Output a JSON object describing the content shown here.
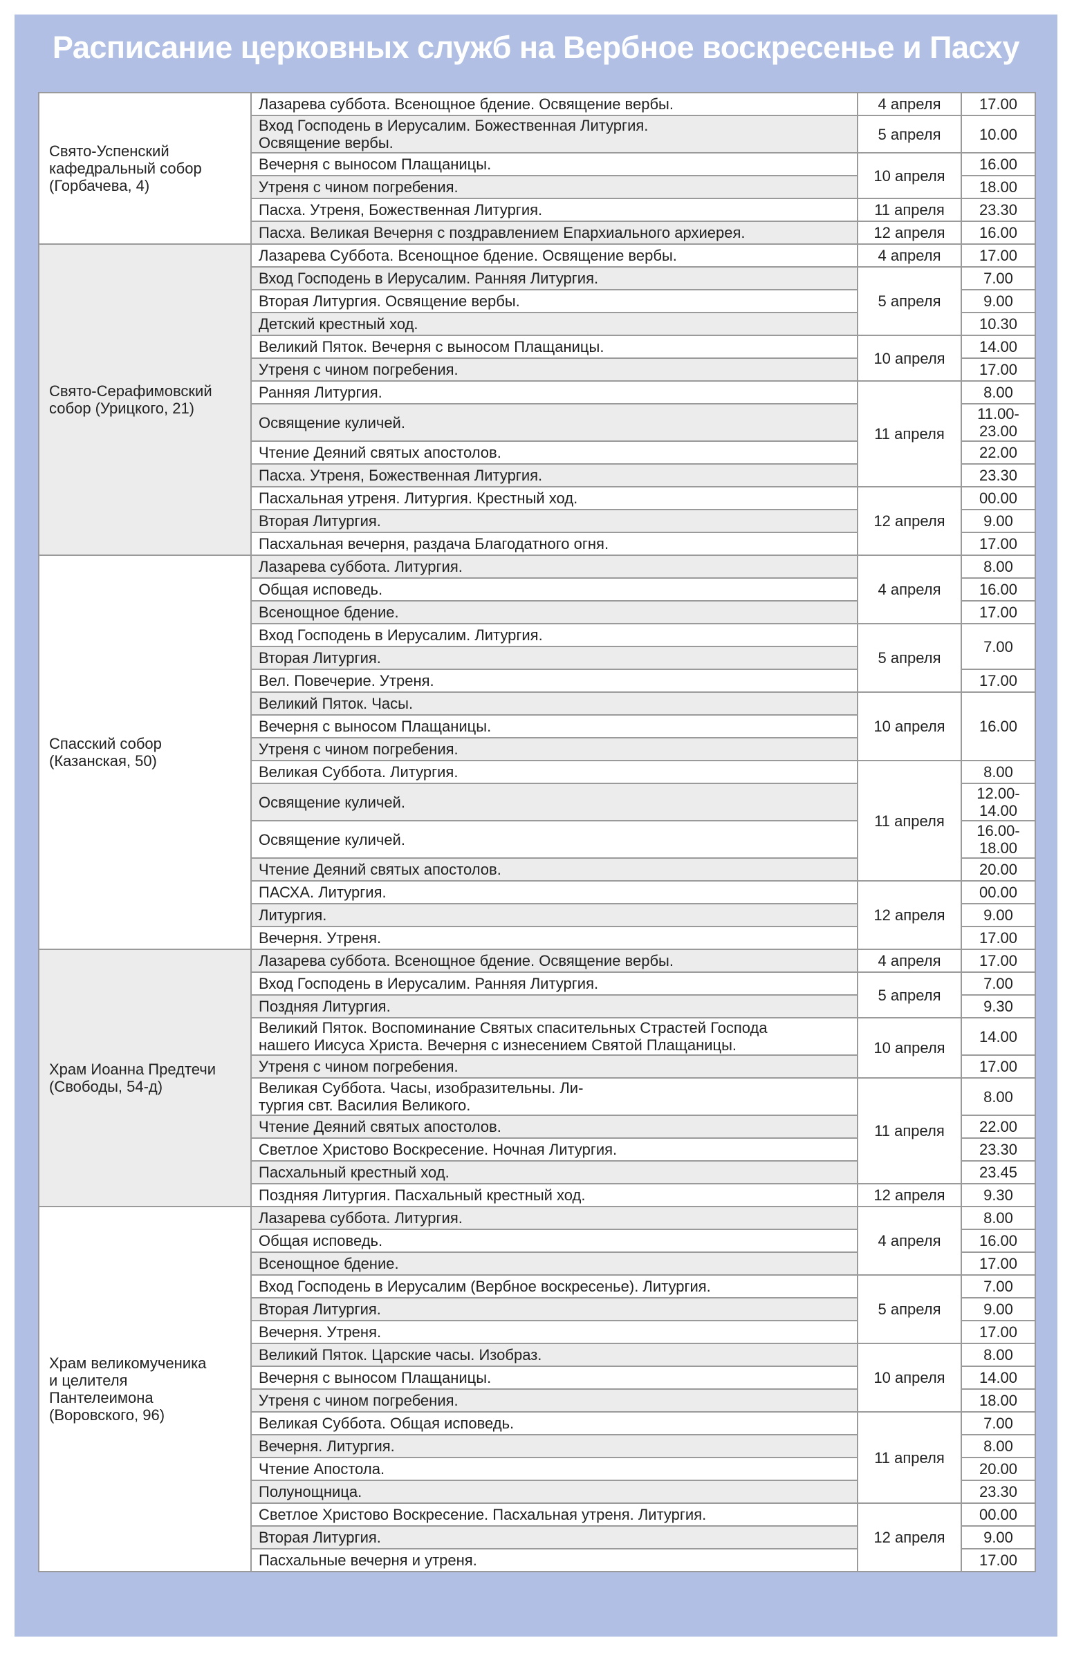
{
  "header": {
    "title": "Расписание церковных служб на Вербное воскресенье и Пасху"
  },
  "sections": [
    {
      "church": "Свято-Успенский\nкафедральный собор\n(Горбачева, 4)",
      "dates": [
        {
          "date": "4 апреля",
          "slots": [
            {
              "time": "17.00",
              "services": [
                "Лазарева суббота. Всенощное бдение. Освящение вербы."
              ]
            }
          ]
        },
        {
          "date": "5 апреля",
          "slots": [
            {
              "time": "10.00",
              "services": [
                "Вход Господень в Иерусалим. Божественная Литургия.\nОсвящение вербы."
              ]
            }
          ]
        },
        {
          "date": "10 апреля",
          "slots": [
            {
              "time": "16.00",
              "services": [
                "Вечерня с выносом Плащаницы."
              ]
            },
            {
              "time": "18.00",
              "services": [
                "Утреня с чином погребения."
              ]
            }
          ]
        },
        {
          "date": "11 апреля",
          "slots": [
            {
              "time": "23.30",
              "services": [
                "Пасха. Утреня, Божественная Литургия."
              ]
            }
          ]
        },
        {
          "date": "12 апреля",
          "slots": [
            {
              "time": "16.00",
              "services": [
                "Пасха. Великая Вечерня с поздравлением Епархиального архиерея."
              ]
            }
          ]
        }
      ]
    },
    {
      "church": "Свято-Серафимовский\nсобор (Урицкого, 21)",
      "dates": [
        {
          "date": "4 апреля",
          "slots": [
            {
              "time": "17.00",
              "services": [
                "Лазарева Суббота. Всенощное бдение. Освящение вербы."
              ]
            }
          ]
        },
        {
          "date": "5 апреля",
          "slots": [
            {
              "time": "7.00",
              "services": [
                "Вход Господень в Иерусалим. Ранняя Литургия."
              ]
            },
            {
              "time": "9.00",
              "services": [
                "Вторая Литургия. Освящение вербы."
              ]
            },
            {
              "time": "10.30",
              "services": [
                "Детский крестный ход."
              ]
            }
          ]
        },
        {
          "date": "10 апреля",
          "slots": [
            {
              "time": "14.00",
              "services": [
                "Великий Пяток. Вечерня с выносом Плащаницы."
              ]
            },
            {
              "time": "17.00",
              "services": [
                "Утреня с чином погребения."
              ]
            }
          ]
        },
        {
          "date": "11 апреля",
          "slots": [
            {
              "time": "8.00",
              "services": [
                "Ранняя Литургия."
              ]
            },
            {
              "time": "11.00-\n23.00",
              "services": [
                "Освящение куличей."
              ]
            },
            {
              "time": "22.00",
              "services": [
                "Чтение Деяний святых апостолов."
              ]
            },
            {
              "time": "23.30",
              "services": [
                "Пасха. Утреня, Божественная Литургия."
              ]
            }
          ]
        },
        {
          "date": "12 апреля",
          "slots": [
            {
              "time": "00.00",
              "services": [
                "Пасхальная утреня. Литургия. Крестный ход."
              ]
            },
            {
              "time": "9.00",
              "services": [
                "Вторая Литургия."
              ]
            },
            {
              "time": "17.00",
              "services": [
                "Пасхальная вечерня, раздача Благодатного огня."
              ]
            }
          ]
        }
      ]
    },
    {
      "church": "Спасский собор\n(Казанская, 50)",
      "dates": [
        {
          "date": "4 апреля",
          "slots": [
            {
              "time": "8.00",
              "services": [
                "Лазарева суббота. Литургия."
              ]
            },
            {
              "time": "16.00",
              "services": [
                "Общая исповедь."
              ]
            },
            {
              "time": "17.00",
              "services": [
                "Всенощное бдение."
              ]
            }
          ]
        },
        {
          "date": "5 апреля",
          "slots": [
            {
              "time": "7.00",
              "services": [
                "Вход Господень в Иерусалим. Литургия.",
                "Вторая Литургия."
              ]
            },
            {
              "time": "17.00",
              "services": [
                "Вел. Повечерие. Утреня."
              ]
            }
          ]
        },
        {
          "date": "10 апреля",
          "slots": [
            {
              "time": "16.00",
              "services": [
                "Великий Пяток. Часы.",
                "Вечерня с выносом Плащаницы.",
                "Утреня с чином погребения."
              ]
            }
          ]
        },
        {
          "date": "11 апреля",
          "slots": [
            {
              "time": "8.00",
              "services": [
                "Великая Суббота. Литургия."
              ]
            },
            {
              "time": "12.00-\n14.00",
              "services": [
                "Освящение куличей."
              ]
            },
            {
              "time": "16.00-\n18.00",
              "services": [
                "Освящение куличей."
              ]
            },
            {
              "time": "20.00",
              "services": [
                "Чтение Деяний святых апостолов."
              ]
            }
          ]
        },
        {
          "date": "12 апреля",
          "slots": [
            {
              "time": "00.00",
              "services": [
                "ПАСХА. Литургия."
              ]
            },
            {
              "time": "9.00",
              "services": [
                "Литургия."
              ]
            },
            {
              "time": "17.00",
              "services": [
                "Вечерня. Утреня."
              ]
            }
          ]
        }
      ]
    },
    {
      "church": "Храм Иоанна Предтечи\n(Свободы, 54-д)",
      "dates": [
        {
          "date": "4 апреля",
          "slots": [
            {
              "time": "17.00",
              "services": [
                "Лазарева суббота. Всенощное бдение. Освящение вербы."
              ]
            }
          ]
        },
        {
          "date": "5 апреля",
          "slots": [
            {
              "time": "7.00",
              "services": [
                "Вход Господень в Иерусалим. Ранняя Литургия."
              ]
            },
            {
              "time": "9.30",
              "services": [
                "Поздняя Литургия."
              ]
            }
          ]
        },
        {
          "date": "10 апреля",
          "slots": [
            {
              "time": "14.00",
              "services": [
                "Великий Пяток. Воспоминание Святых спасительных Страстей Господа\nнашего Иисуса Христа. Вечерня с изнесением Святой Плащаницы."
              ]
            },
            {
              "time": "17.00",
              "services": [
                "Утреня с чином погребения."
              ]
            }
          ]
        },
        {
          "date": "11 апреля",
          "slots": [
            {
              "time": "8.00",
              "services": [
                "Великая Суббота. Часы, изобразительны. Ли-\nтургия свт. Василия Великого."
              ]
            },
            {
              "time": "22.00",
              "services": [
                "Чтение Деяний святых апостолов."
              ]
            },
            {
              "time": "23.30",
              "services": [
                "Светлое Христово Воскресение. Ночная Литургия."
              ]
            },
            {
              "time": "23.45",
              "services": [
                "Пасхальный крестный ход."
              ]
            }
          ]
        },
        {
          "date": "12 апреля",
          "slots": [
            {
              "time": "9.30",
              "services": [
                "Поздняя Литургия. Пасхальный крестный ход."
              ]
            }
          ]
        }
      ]
    },
    {
      "church": "Храм великомученика\nи целителя\nПантелеимона\n(Воровского, 96)",
      "dates": [
        {
          "date": "4 апреля",
          "slots": [
            {
              "time": "8.00",
              "services": [
                "Лазарева суббота. Литургия."
              ]
            },
            {
              "time": "16.00",
              "services": [
                "Общая исповедь."
              ]
            },
            {
              "time": "17.00",
              "services": [
                "Всенощное бдение."
              ]
            }
          ]
        },
        {
          "date": "5 апреля",
          "slots": [
            {
              "time": "7.00",
              "services": [
                "Вход Господень в Иерусалим (Вербное воскресенье). Литургия."
              ]
            },
            {
              "time": "9.00",
              "services": [
                "Вторая Литургия."
              ]
            },
            {
              "time": "17.00",
              "services": [
                "Вечерня. Утреня."
              ]
            }
          ]
        },
        {
          "date": "10 апреля",
          "slots": [
            {
              "time": "8.00",
              "services": [
                "Великий Пяток. Царские часы. Изобраз."
              ]
            },
            {
              "time": "14.00",
              "services": [
                "Вечерня с выносом Плащаницы."
              ]
            },
            {
              "time": "18.00",
              "services": [
                "Утреня с чином погребения."
              ]
            }
          ]
        },
        {
          "date": "11 апреля",
          "slots": [
            {
              "time": "7.00",
              "services": [
                "Великая Суббота. Общая исповедь."
              ]
            },
            {
              "time": "8.00",
              "services": [
                "Вечерня. Литургия."
              ]
            },
            {
              "time": "20.00",
              "services": [
                "Чтение Апостола."
              ]
            },
            {
              "time": "23.30",
              "services": [
                "Полунощница."
              ]
            }
          ]
        },
        {
          "date": "12 апреля",
          "slots": [
            {
              "time": "00.00",
              "services": [
                "Светлое Христово Воскресение. Пасхальная утреня. Литургия."
              ]
            },
            {
              "time": "9.00",
              "services": [
                "Вторая Литургия."
              ]
            },
            {
              "time": "17.00",
              "services": [
                "Пасхальные вечерня и утреня."
              ]
            }
          ]
        }
      ]
    }
  ]
}
